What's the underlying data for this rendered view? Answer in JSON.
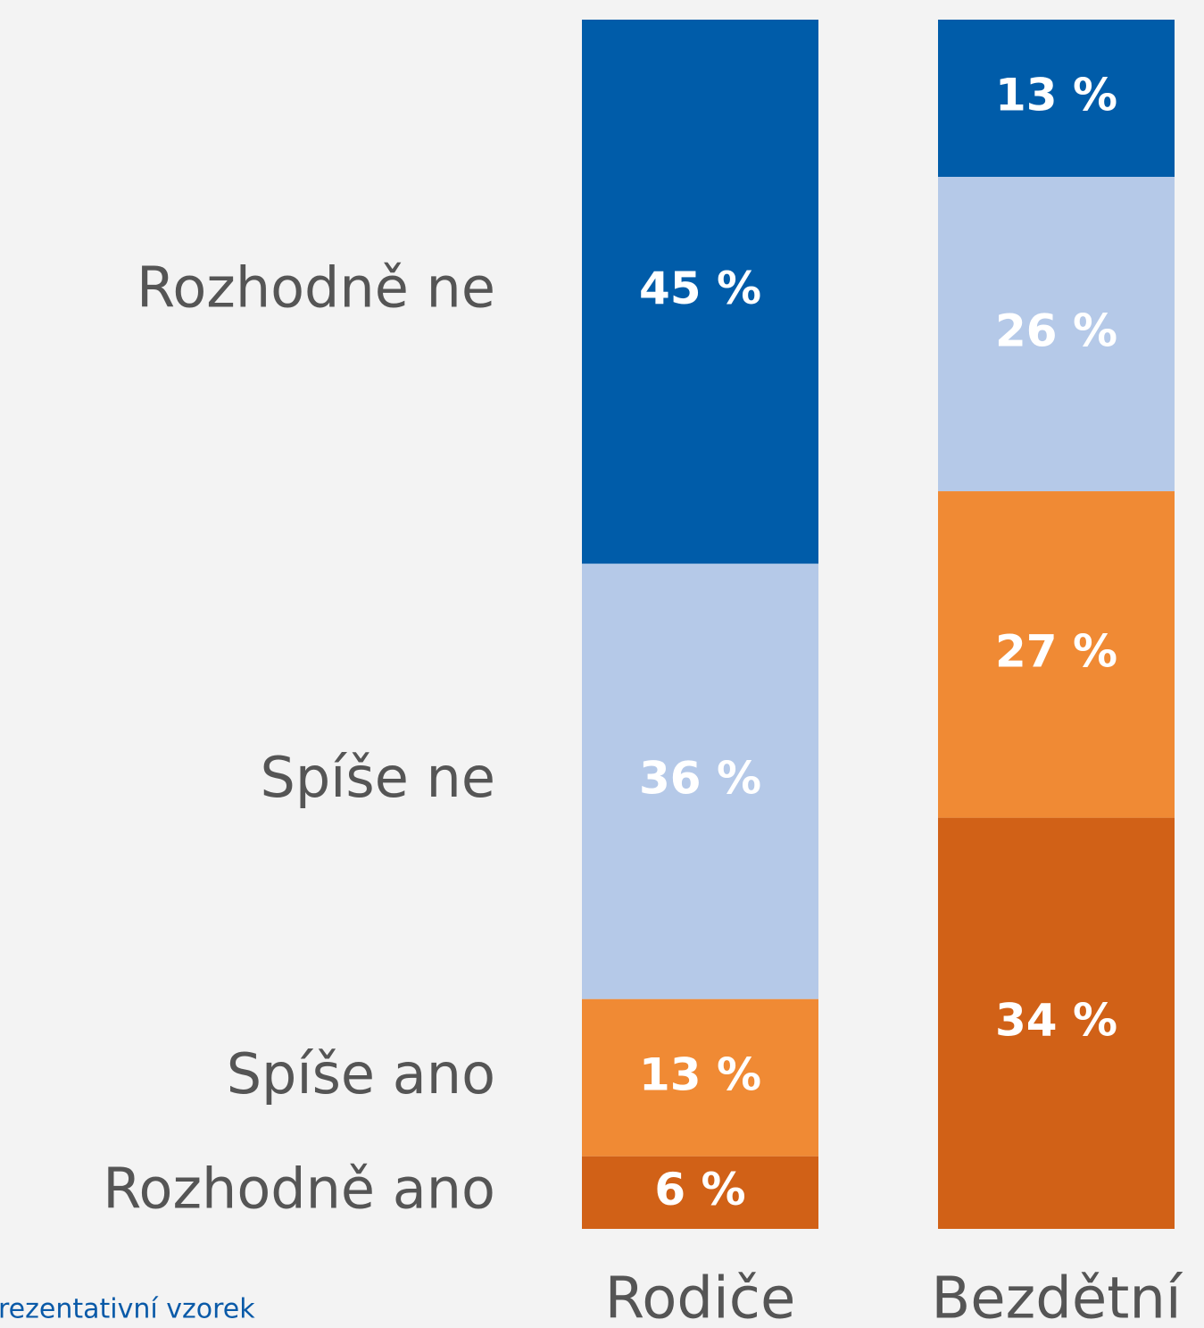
{
  "chart_data": {
    "type": "stacked_bar",
    "categories": [
      "Rodiče",
      "Bezdětní"
    ],
    "series": [
      {
        "name": "Rozhodně ne",
        "color": "#005ca9",
        "values": [
          45,
          13
        ],
        "value_labels": [
          "45 %",
          "13 %"
        ]
      },
      {
        "name": "Spíše ne",
        "color": "#b5c9e8",
        "values": [
          36,
          26
        ],
        "value_labels": [
          "36 %",
          "26 %"
        ]
      },
      {
        "name": "Spíše ano",
        "color": "#f08a34",
        "values": [
          13,
          27
        ],
        "value_labels": [
          "13 %",
          "27 %"
        ]
      },
      {
        "name": "Rozhodně ano",
        "color": "#d16117",
        "values": [
          6,
          34
        ],
        "value_labels": [
          "6 %",
          "34 %"
        ]
      }
    ],
    "footnote": "rezentativní vzorek"
  }
}
